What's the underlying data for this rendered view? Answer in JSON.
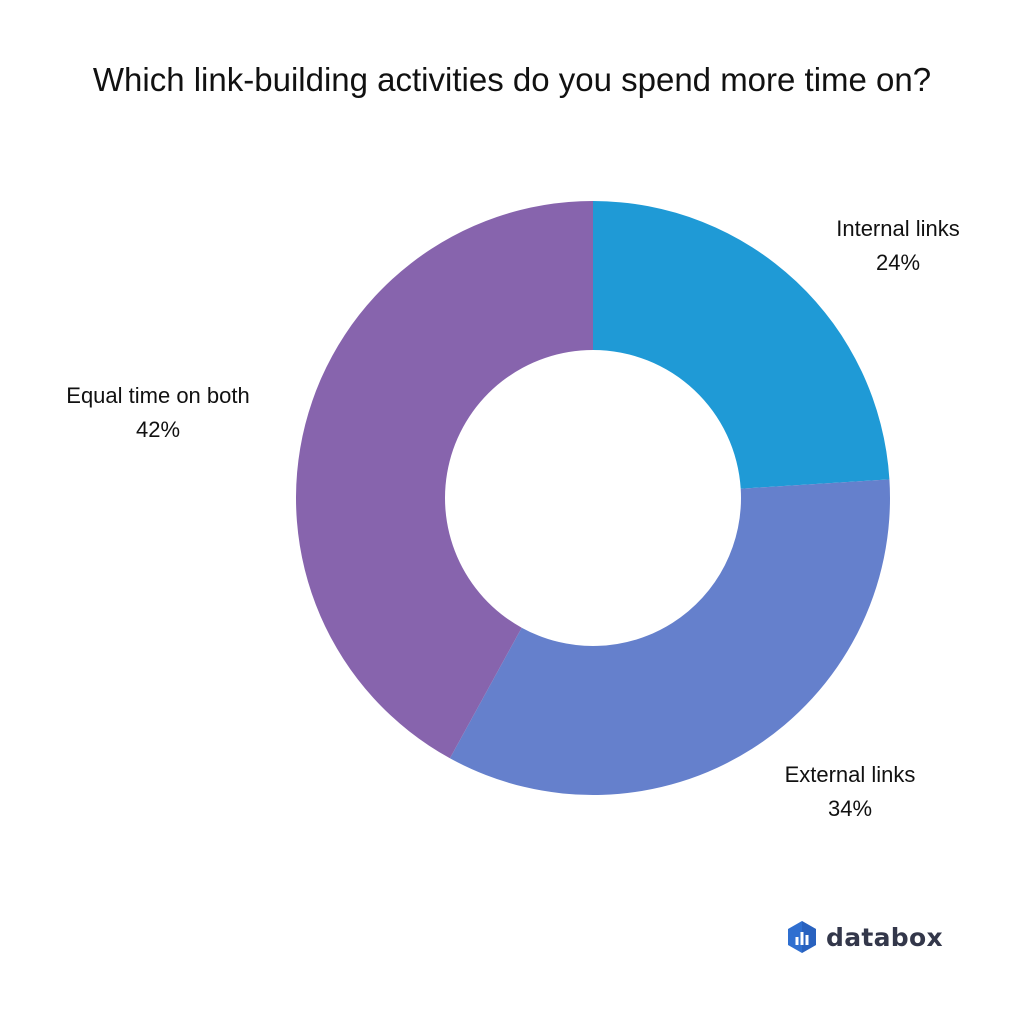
{
  "chart_data": {
    "type": "pie",
    "title": "Which link-building activities do you spend more time on?",
    "donut": true,
    "start": "12 o'clock, clockwise",
    "slices": [
      {
        "label": "Internal links",
        "value": 24,
        "display": "24%",
        "color": "#1f9ad6"
      },
      {
        "label": "External links",
        "value": 34,
        "display": "34%",
        "color": "#6580cc"
      },
      {
        "label": "Equal time on both",
        "value": 42,
        "display": "42%",
        "color": "#8764ad"
      }
    ]
  },
  "brand": {
    "name": "databox",
    "color": "#33374a"
  }
}
